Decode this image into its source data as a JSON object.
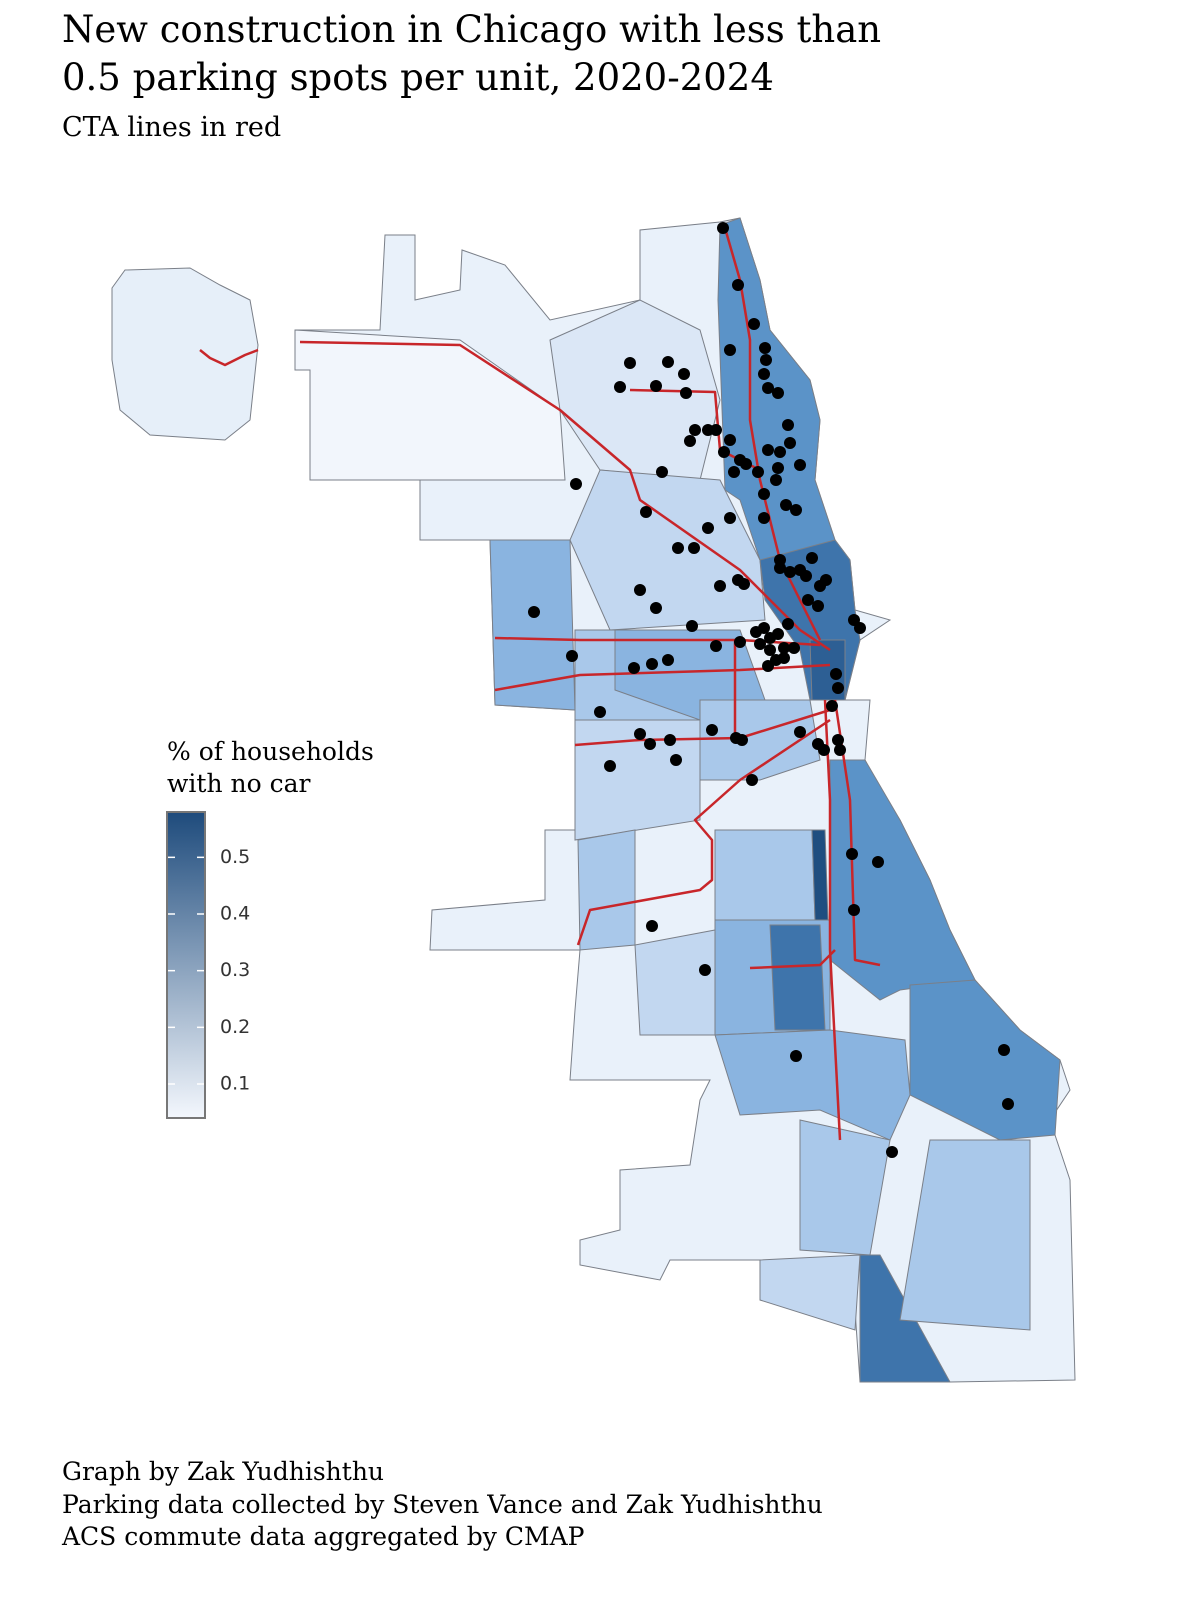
{
  "title": [
    "New construction in Chicago with less than",
    "0.5 parking spots per unit, 2020-2024"
  ],
  "subtitle": "CTA lines in red",
  "legend": {
    "title": [
      "% of households",
      "with no car"
    ],
    "ticks": [
      0.1,
      0.2,
      0.3,
      0.4,
      0.5
    ],
    "limits": [
      0.04,
      0.58
    ],
    "colors": [
      "#f3f7fd",
      "#1e4b7c"
    ]
  },
  "caption": [
    "Graph by Zak Yudhishthu",
    "Parking data collected by Steven Vance and Zak Yudhishthu",
    "ACS commute data aggregated by CMAP"
  ]
}
